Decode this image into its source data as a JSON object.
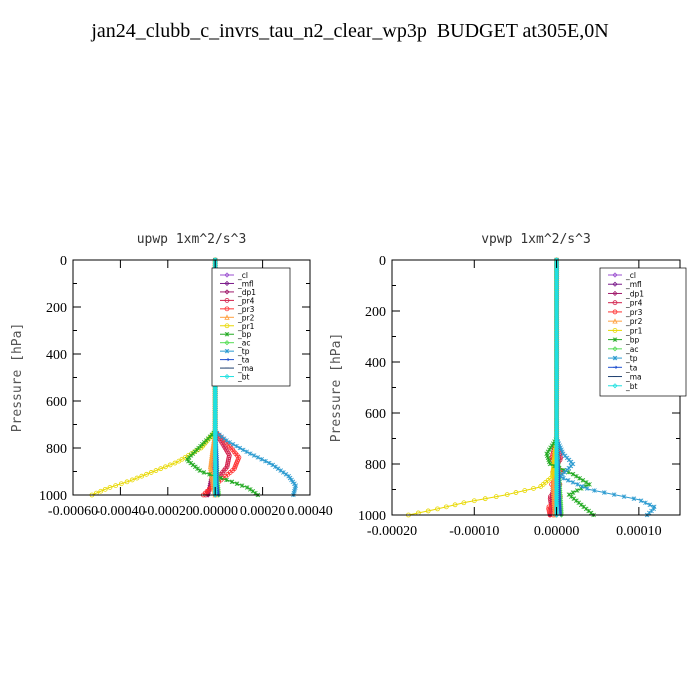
{
  "title": "jan24_clubb_c_invrs_tau_n2_clear_wp3p  BUDGET at305E,0N",
  "colors": {
    "_cl": "#9b4fd0",
    "_mfl": "#7a1a8a",
    "_dp1": "#a0196b",
    "_pr4": "#d21e4a",
    "_pr3": "#ff3030",
    "_pr2": "#ffa040",
    "_pr1": "#e8d800",
    "_bp": "#22aa22",
    "_ac": "#55dd55",
    "_tp": "#2a9ad0",
    "_ta": "#2050d0",
    "_ma": "#204070",
    "_bt": "#20e0e0"
  },
  "chart_data": [
    {
      "type": "line",
      "title": "upwp   1xm^2/s^3",
      "ylabel": "Pressure [hPa]",
      "xlim": [
        -0.0006,
        0.0004
      ],
      "ylim": [
        1000,
        0
      ],
      "xticks": [
        -0.0006,
        -0.0004,
        -0.0002,
        0.0,
        0.0002,
        0.0004
      ],
      "xticklabels": [
        "-0.00060",
        "-0.00040",
        "-0.00020",
        "0.00000",
        "0.00020",
        "0.00040"
      ],
      "yticks": [
        0,
        200,
        400,
        600,
        800,
        1000
      ],
      "legend": [
        "_cl",
        "_mfl",
        "_dp1",
        "_pr4",
        "_pr3",
        "_pr2",
        "_pr1",
        "_bp",
        "_ac",
        "_tp",
        "_ta",
        "_ma",
        "_bt"
      ],
      "legend_position": "top-right",
      "series": [
        {
          "name": "_cl",
          "p": [
            0,
            730,
            850,
            950,
            1000
          ],
          "x": [
            0,
            0,
            0,
            0,
            0
          ]
        },
        {
          "name": "_mfl",
          "p": [
            0,
            730,
            850,
            950,
            1000
          ],
          "x": [
            0,
            0,
            0,
            0,
            0
          ]
        },
        {
          "name": "_dp1",
          "p": [
            0,
            730,
            800,
            900,
            950,
            1000
          ],
          "x": [
            0,
            0,
            -5e-06,
            -1e-05,
            -2e-05,
            -3e-05
          ]
        },
        {
          "name": "_pr4",
          "p": [
            0,
            730,
            780,
            830,
            880,
            930,
            970,
            1000
          ],
          "x": [
            0,
            0,
            3e-05,
            6e-05,
            5e-05,
            1e-05,
            -2e-05,
            -4e-05
          ]
        },
        {
          "name": "_pr3",
          "p": [
            0,
            730,
            780,
            840,
            890,
            940,
            980,
            1000
          ],
          "x": [
            0,
            0,
            5e-05,
            0.0001,
            8e-05,
            2e-05,
            -3e-05,
            -5e-05
          ]
        },
        {
          "name": "_pr2",
          "p": [
            0,
            730,
            800,
            880,
            950,
            1000
          ],
          "x": [
            0,
            0,
            -1e-05,
            -2e-05,
            -1e-05,
            0
          ]
        },
        {
          "name": "_pr1",
          "p": [
            0,
            730,
            800,
            860,
            900,
            940,
            970,
            1000
          ],
          "x": [
            0,
            0,
            -6e-05,
            -0.00016,
            -0.00026,
            -0.00036,
            -0.00045,
            -0.00052
          ]
        },
        {
          "name": "_bp",
          "p": [
            0,
            730,
            790,
            850,
            900,
            940,
            970,
            1000
          ],
          "x": [
            0,
            0,
            -6e-05,
            -0.00012,
            -6e-05,
            6e-05,
            0.00014,
            0.00018
          ]
        },
        {
          "name": "_ac",
          "p": [
            0,
            730,
            850,
            950,
            1000
          ],
          "x": [
            0,
            0,
            5e-06,
            1e-05,
            1.5e-05
          ]
        },
        {
          "name": "_tp",
          "p": [
            0,
            730,
            770,
            820,
            870,
            920,
            960,
            1000
          ],
          "x": [
            0,
            0,
            5e-05,
            0.00014,
            0.00024,
            0.00031,
            0.00034,
            0.00033
          ]
        },
        {
          "name": "_ta",
          "p": [
            0,
            730,
            850,
            950,
            1000
          ],
          "x": [
            0,
            0,
            5e-06,
            5e-06,
            1e-05
          ]
        },
        {
          "name": "_ma",
          "p": [
            0,
            1000
          ],
          "x": [
            0,
            0
          ]
        },
        {
          "name": "_bt",
          "p": [
            0,
            1000
          ],
          "x": [
            0,
            0
          ]
        }
      ]
    },
    {
      "type": "line",
      "title": "vpwp   1xm^2/s^3",
      "ylabel": "Pressure [hPa]",
      "xlim": [
        -0.0002,
        0.00015
      ],
      "ylim": [
        1000,
        0
      ],
      "xticks": [
        -0.0002,
        -0.0001,
        0.0,
        0.0001
      ],
      "xticklabels": [
        "-0.00020",
        "-0.00010",
        "0.00000",
        "0.00010"
      ],
      "yticks": [
        0,
        200,
        400,
        600,
        800,
        1000
      ],
      "legend": [
        "_cl",
        "_mfl",
        "_dp1",
        "_pr4",
        "_pr3",
        "_pr2",
        "_pr1",
        "_bp",
        "_ac",
        "_tp",
        "_ta",
        "_ma",
        "_bt"
      ],
      "legend_position": "top-right",
      "series": [
        {
          "name": "_cl",
          "p": [
            0,
            700,
            850,
            950,
            1000
          ],
          "x": [
            0,
            0,
            0,
            0,
            0
          ]
        },
        {
          "name": "_mfl",
          "p": [
            0,
            700,
            850,
            950,
            1000
          ],
          "x": [
            0,
            0,
            0,
            0,
            0
          ]
        },
        {
          "name": "_dp1",
          "p": [
            0,
            700,
            850,
            950,
            1000
          ],
          "x": [
            0,
            0,
            -3e-06,
            -6e-06,
            -8e-06
          ]
        },
        {
          "name": "_pr4",
          "p": [
            0,
            700,
            780,
            830,
            880,
            930,
            970,
            1000
          ],
          "x": [
            0,
            0,
            5e-06,
            -5e-06,
            4e-06,
            -8e-06,
            -6e-06,
            -4e-06
          ]
        },
        {
          "name": "_pr3",
          "p": [
            0,
            700,
            780,
            830,
            880,
            930,
            970,
            1000
          ],
          "x": [
            0,
            0,
            -6e-06,
            6e-06,
            -6e-06,
            5e-06,
            -1e-05,
            -8e-06
          ]
        },
        {
          "name": "_pr2",
          "p": [
            0,
            700,
            800,
            900,
            1000
          ],
          "x": [
            0,
            0,
            -3e-06,
            -4e-06,
            -2e-06
          ]
        },
        {
          "name": "_pr1",
          "p": [
            0,
            700,
            850,
            890,
            920,
            950,
            980,
            1000
          ],
          "x": [
            0,
            0,
            -5e-06,
            -2e-05,
            -6e-05,
            -0.00011,
            -0.00015,
            -0.00018
          ]
        },
        {
          "name": "_bp",
          "p": [
            0,
            700,
            760,
            800,
            840,
            880,
            920,
            960,
            1000
          ],
          "x": [
            0,
            0,
            -1.2e-05,
            -8e-06,
            2e-05,
            4e-05,
            1.5e-05,
            3e-05,
            4.5e-05
          ]
        },
        {
          "name": "_ac",
          "p": [
            0,
            700,
            850,
            950,
            1000
          ],
          "x": [
            0,
            0,
            3e-06,
            5e-06,
            6e-06
          ]
        },
        {
          "name": "_tp",
          "p": [
            0,
            190,
            220,
            700,
            760,
            800,
            850,
            900,
            940,
            970,
            1000
          ],
          "x": [
            0,
            0,
            0,
            0,
            8e-06,
            2e-05,
            4e-06,
            4e-05,
            0.0001,
            0.00012,
            0.00011
          ]
        },
        {
          "name": "_ta",
          "p": [
            0,
            700,
            850,
            950,
            1000
          ],
          "x": [
            0,
            0,
            2e-06,
            3e-06,
            4e-06
          ]
        },
        {
          "name": "_ma",
          "p": [
            0,
            1000
          ],
          "x": [
            0,
            0
          ]
        },
        {
          "name": "_bt",
          "p": [
            0,
            1000
          ],
          "x": [
            0,
            0
          ]
        }
      ]
    }
  ]
}
